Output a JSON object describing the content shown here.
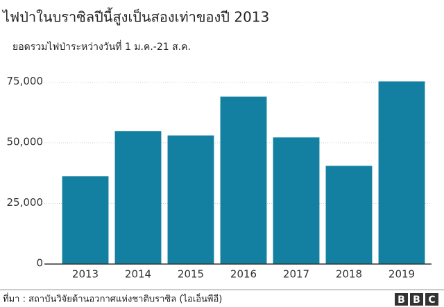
{
  "chart_data": {
    "type": "bar",
    "title": "ไฟป่าในบราซิลปีนี้สูงเป็นสองเท่าของปี 2013",
    "subtitle": "ยอดรวมไฟป่าระหว่างวันที่ 1 ม.ค.-21 ส.ค.",
    "categories": [
      "2013",
      "2014",
      "2015",
      "2016",
      "2017",
      "2018",
      "2019"
    ],
    "values": [
      36200,
      54800,
      53000,
      69000,
      52200,
      40500,
      75300
    ],
    "color": "#1380a1",
    "ylim": [
      0,
      82000
    ],
    "yticks": [
      0,
      {
        "value": 25000,
        "label": "25,000"
      },
      {
        "value": 50000,
        "label": "50,000"
      },
      {
        "value": 75000,
        "label": "75,000"
      }
    ],
    "grid": true,
    "source": "ที่มา : สถาบันวิจัยด้านอวกาศแห่งชาติบราซิล (ไอเอ็นพีอี)",
    "logo": [
      "B",
      "B",
      "C"
    ]
  }
}
